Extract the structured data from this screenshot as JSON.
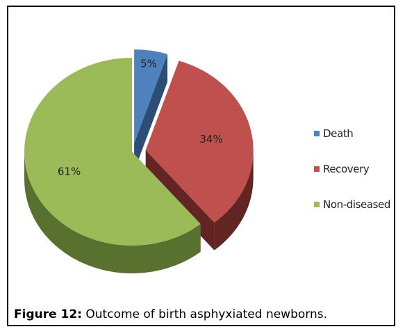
{
  "chart_data": {
    "type": "pie",
    "title": "",
    "categories": [
      "Death",
      "Recovery",
      "Non-diseased"
    ],
    "values": [
      5,
      34,
      61
    ],
    "value_labels": [
      "5%",
      "34%",
      "61%"
    ],
    "colors": [
      "#4f81bd",
      "#c0504d",
      "#9bbb59"
    ],
    "side_colors": [
      "#2c4d75",
      "#632523",
      "#58712f"
    ],
    "exploded": true,
    "three_d": true,
    "legend_position": "right"
  },
  "caption": {
    "figure_label": "Figure 12:",
    "text": " Outcome of birth asphyxiated newborns."
  }
}
